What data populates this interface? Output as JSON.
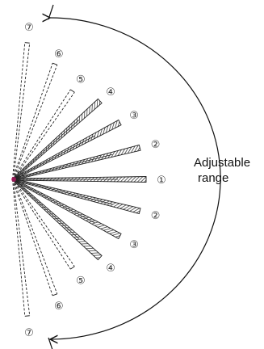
{
  "caption": {
    "line1": "Adjustable",
    "line2": "range"
  },
  "beams": [
    {
      "level": "①",
      "angle_deg": 0,
      "style": "hatched"
    },
    {
      "level": "②",
      "angle_deg": -14,
      "style": "hatched"
    },
    {
      "level": "③",
      "angle_deg": -28,
      "style": "hatched"
    },
    {
      "level": "④",
      "angle_deg": -42,
      "style": "hatched"
    },
    {
      "level": "⑤",
      "angle_deg": -56,
      "style": "dashed"
    },
    {
      "level": "⑥",
      "angle_deg": -70,
      "style": "dashed"
    },
    {
      "level": "⑦",
      "angle_deg": -84,
      "style": "dashed"
    },
    {
      "level": "②",
      "angle_deg": 14,
      "style": "hatched"
    },
    {
      "level": "③",
      "angle_deg": 28,
      "style": "hatched"
    },
    {
      "level": "④",
      "angle_deg": 42,
      "style": "hatched"
    },
    {
      "level": "⑤",
      "angle_deg": 56,
      "style": "dashed"
    },
    {
      "level": "⑥",
      "angle_deg": 70,
      "style": "dashed"
    },
    {
      "level": "⑦",
      "angle_deg": 84,
      "style": "dashed"
    }
  ],
  "colors": {
    "beam": "#222222",
    "origin": "#c0186a",
    "arc": "#111111"
  }
}
